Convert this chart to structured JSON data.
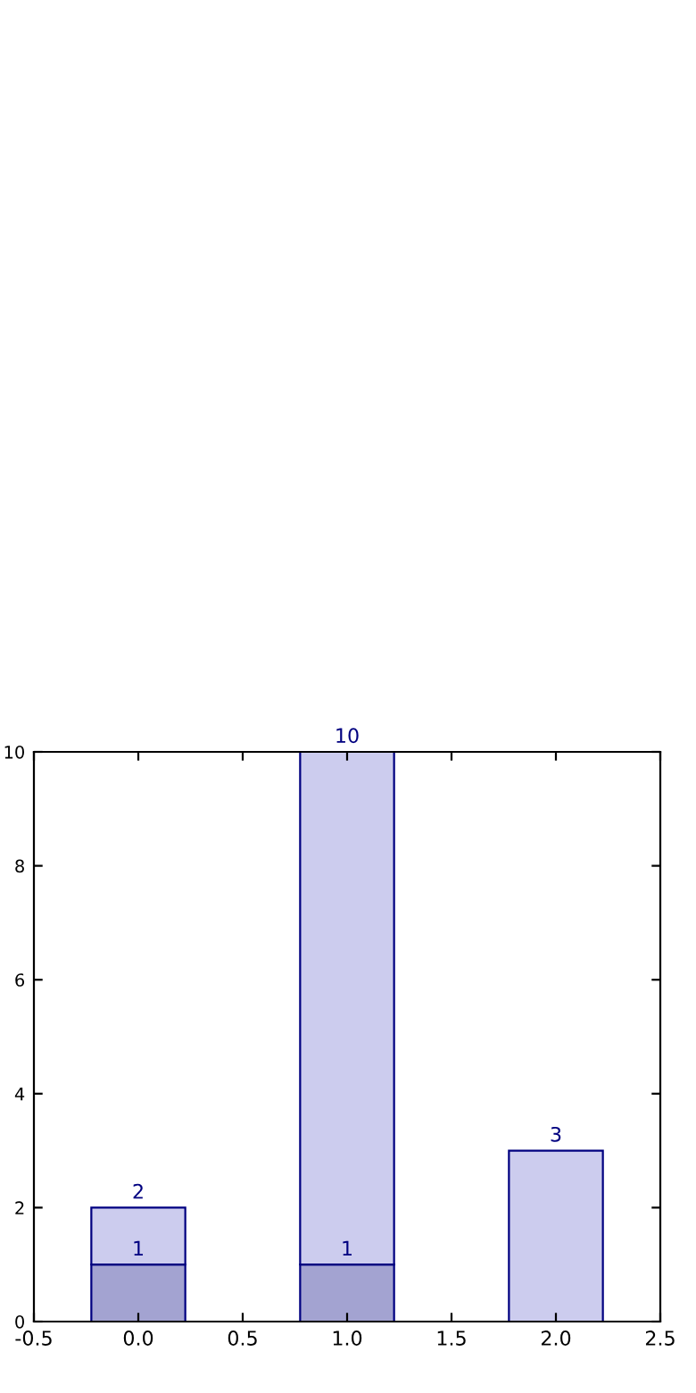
{
  "chart_data": {
    "type": "bar",
    "x": [
      0,
      1,
      2
    ],
    "stacked": true,
    "series": [
      {
        "color": "#a3a3d1",
        "values": [
          1,
          1,
          null
        ],
        "value_labels": [
          "1",
          "1",
          null
        ]
      },
      {
        "color": "#ccccee",
        "values": [
          1,
          9,
          3
        ]
      }
    ],
    "totals": [
      "2",
      "10",
      "3"
    ],
    "xlim": [
      -0.5,
      2.5
    ],
    "xticks": [
      -0.5,
      {
        "value": 0,
        "label": "0.0"
      },
      0.5,
      {
        "value": 1,
        "label": "1.0"
      },
      1.5,
      {
        "value": 2,
        "label": "2.0"
      },
      2.5
    ],
    "ylim": [
      0,
      10
    ],
    "yticks": [
      0,
      2,
      4,
      6,
      8,
      10
    ],
    "grid": false
  }
}
